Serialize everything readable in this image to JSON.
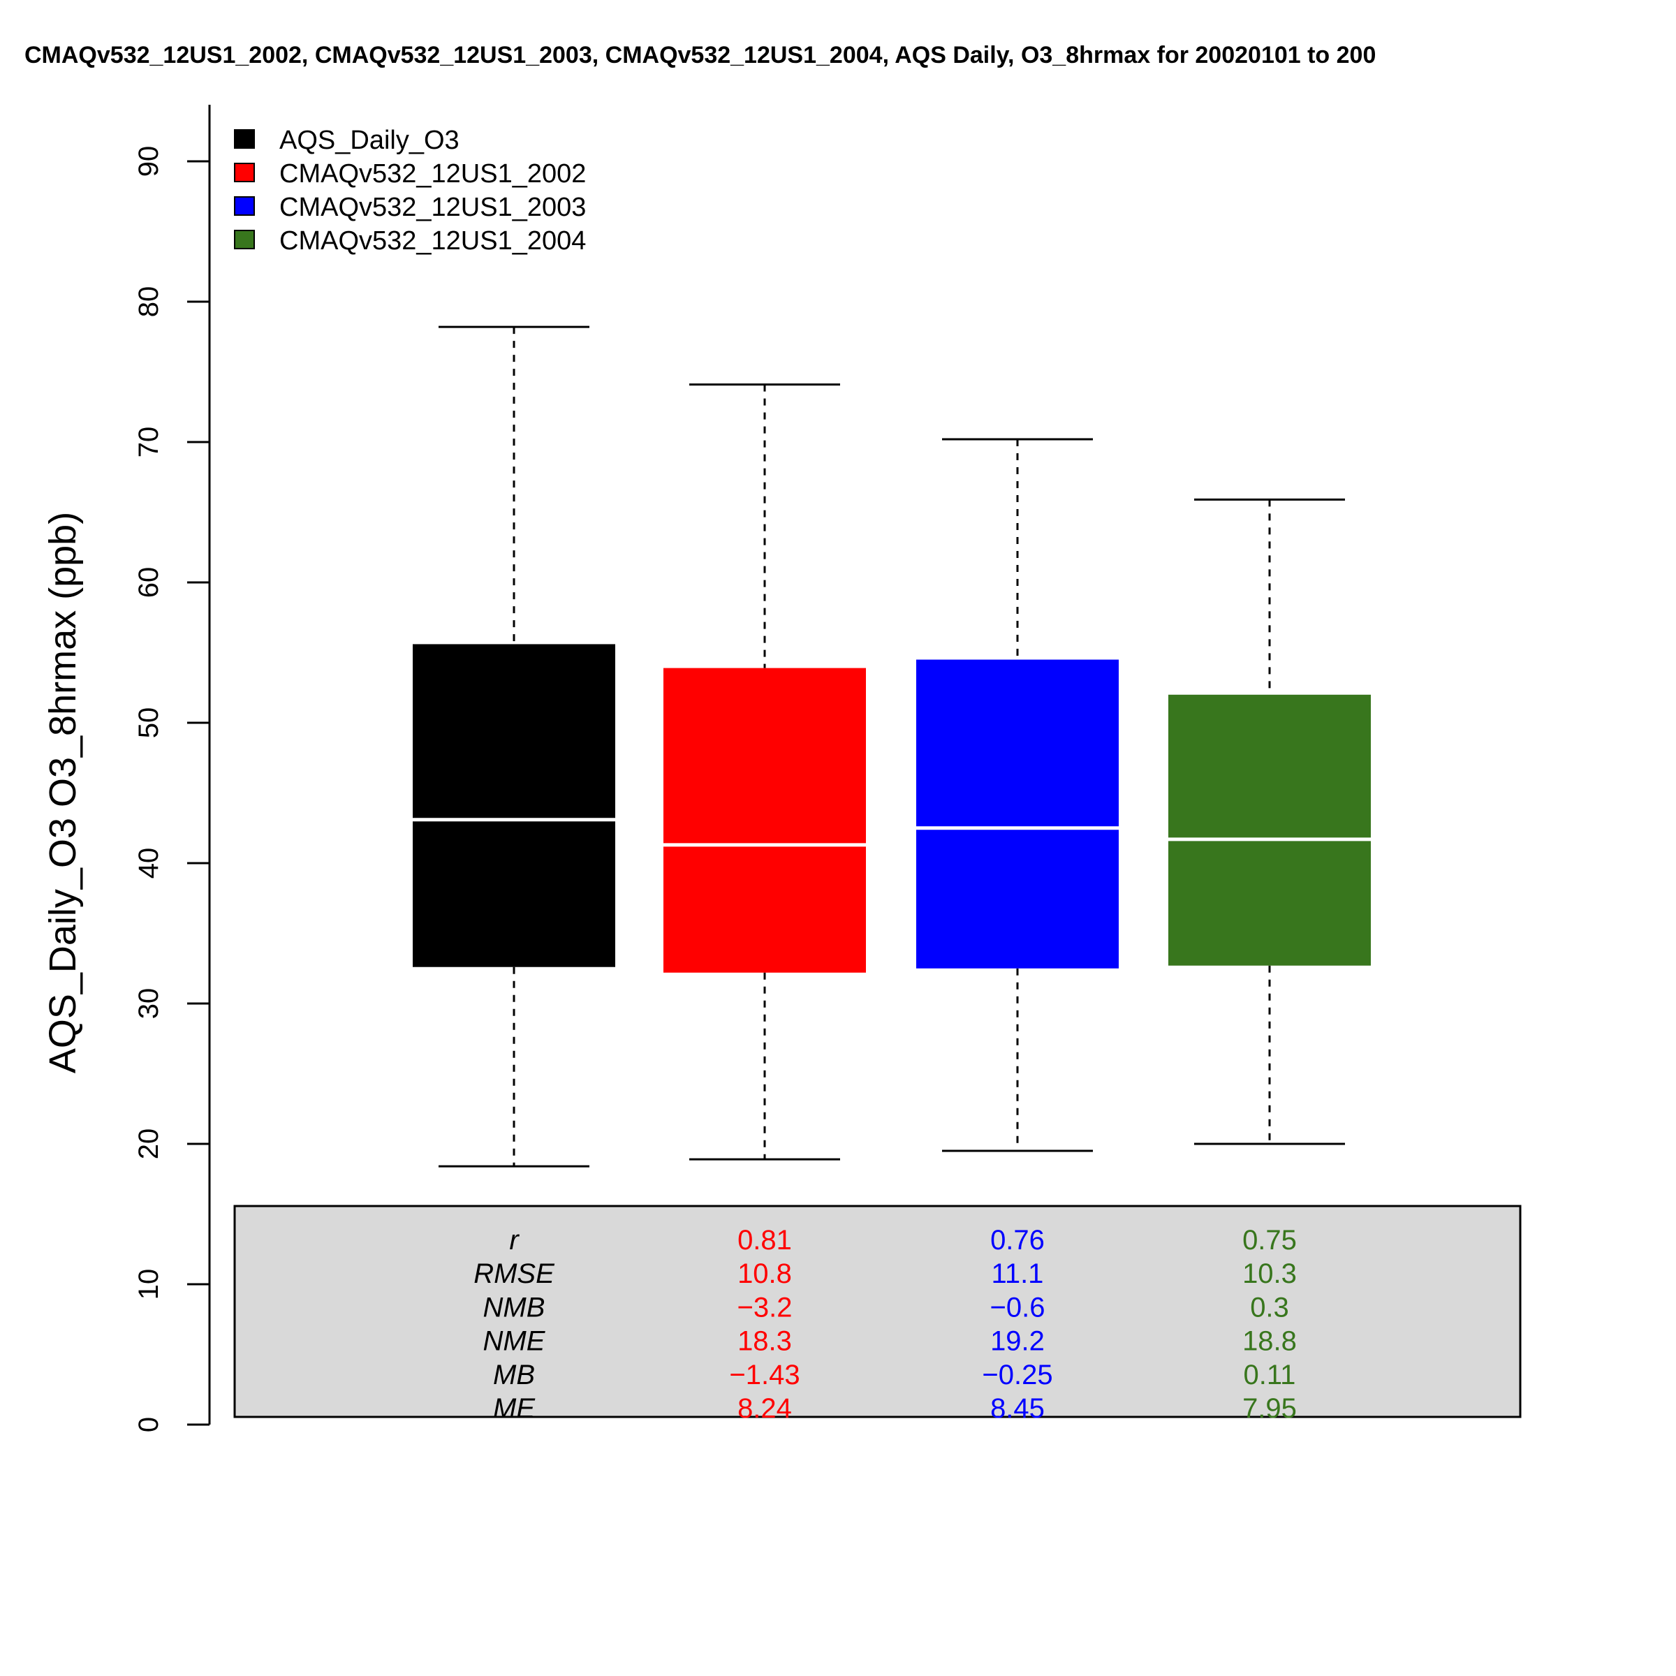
{
  "chart_data": {
    "type": "box",
    "title": "CMAQv532_12US1_2002, CMAQv532_12US1_2003, CMAQv532_12US1_2004, AQS Daily, O3_8hrmax for 20020101 to 200",
    "ylabel": "AQS_Daily_O3 O3_8hrmax (ppb)",
    "xlabel": "",
    "ylim": [
      0,
      92
    ],
    "yticks": [
      "0",
      "10",
      "20",
      "30",
      "40",
      "50",
      "60",
      "70",
      "80",
      "90"
    ],
    "legend_position": "top-left",
    "series": [
      {
        "name": "AQS_Daily_O3",
        "color": "#000000",
        "whisker_low": 18.4,
        "q1": 32.6,
        "median": 43.1,
        "q3": 55.6,
        "whisker_high": 78.2
      },
      {
        "name": "CMAQv532_12US1_2002",
        "color": "#FF0000",
        "whisker_low": 18.9,
        "q1": 32.2,
        "median": 41.3,
        "q3": 53.9,
        "whisker_high": 74.1
      },
      {
        "name": "CMAQv532_12US1_2003",
        "color": "#0000FF",
        "whisker_low": 19.5,
        "q1": 32.5,
        "median": 42.5,
        "q3": 54.5,
        "whisker_high": 70.2
      },
      {
        "name": "CMAQv532_12US1_2004",
        "color": "#38761D",
        "whisker_low": 20.0,
        "q1": 32.7,
        "median": 41.7,
        "q3": 52.0,
        "whisker_high": 65.9
      }
    ],
    "stats": {
      "names": [
        "r",
        "RMSE",
        "NMB",
        "NME",
        "MB",
        "ME"
      ],
      "columns": [
        {
          "color": "#FF0000",
          "values": [
            "0.81",
            "10.8",
            "−3.2",
            "18.3",
            "−1.43",
            "8.24"
          ]
        },
        {
          "color": "#0000FF",
          "values": [
            "0.76",
            "11.1",
            "−0.6",
            "19.2",
            "−0.25",
            "8.45"
          ]
        },
        {
          "color": "#38761D",
          "values": [
            "0.75",
            "10.3",
            "0.3",
            "18.8",
            "0.11",
            "7.95"
          ]
        }
      ]
    }
  }
}
